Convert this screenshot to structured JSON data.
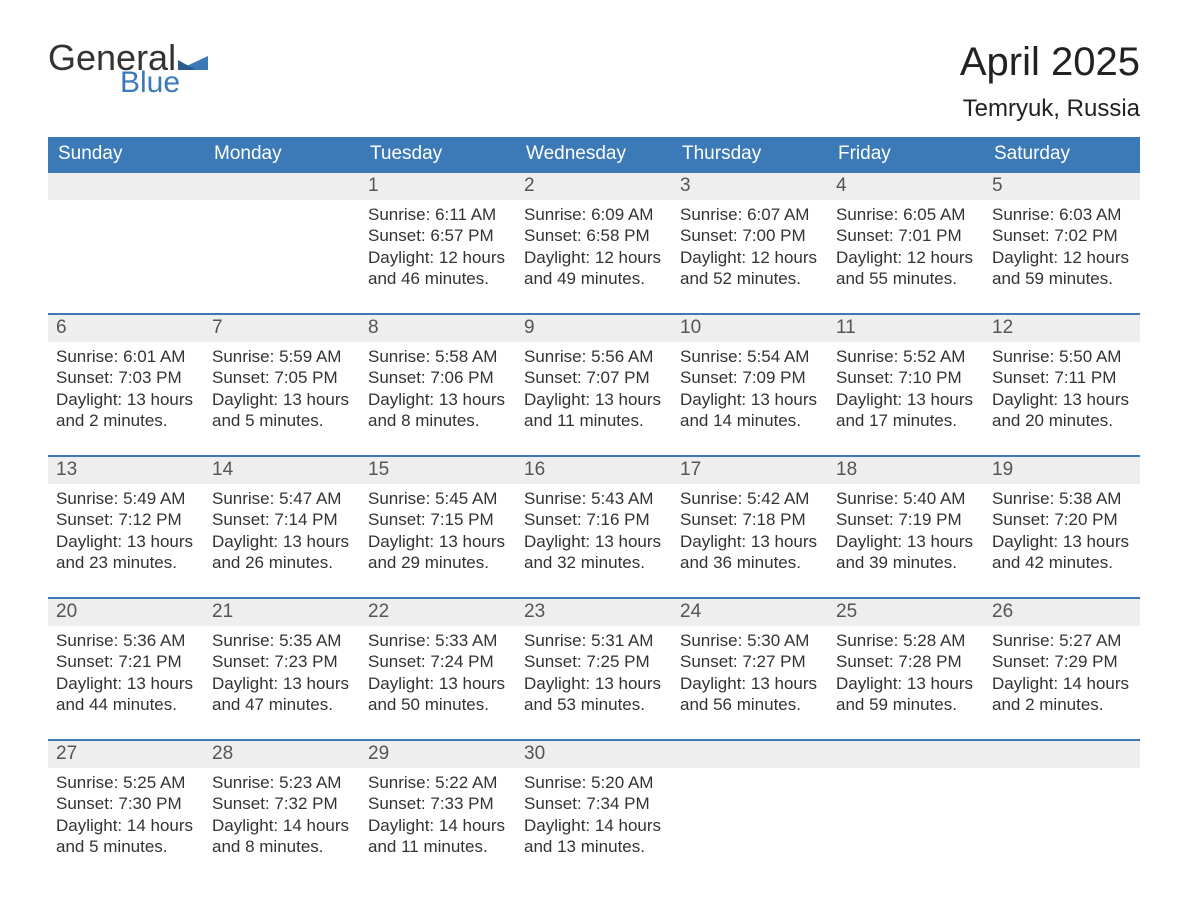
{
  "brand": {
    "word1": "General",
    "word2": "Blue",
    "accent_color": "#3b79b7"
  },
  "title": "April 2025",
  "location": "Temryuk, Russia",
  "day_headers": [
    "Sunday",
    "Monday",
    "Tuesday",
    "Wednesday",
    "Thursday",
    "Friday",
    "Saturday"
  ],
  "colors": {
    "header_bg": "#3b79b7",
    "header_text": "#ffffff",
    "daynum_bg": "#eeeeee",
    "text": "#333333",
    "border": "#3b79b7"
  },
  "fonts": {
    "month_title_size": 40,
    "location_size": 24,
    "header_size": 19,
    "daynum_size": 19,
    "body_size": 17
  },
  "weeks": [
    [
      {
        "n": "",
        "sunrise": "",
        "sunset": "",
        "daylight": ""
      },
      {
        "n": "",
        "sunrise": "",
        "sunset": "",
        "daylight": ""
      },
      {
        "n": "1",
        "sunrise": "Sunrise: 6:11 AM",
        "sunset": "Sunset: 6:57 PM",
        "daylight": "Daylight: 12 hours and 46 minutes."
      },
      {
        "n": "2",
        "sunrise": "Sunrise: 6:09 AM",
        "sunset": "Sunset: 6:58 PM",
        "daylight": "Daylight: 12 hours and 49 minutes."
      },
      {
        "n": "3",
        "sunrise": "Sunrise: 6:07 AM",
        "sunset": "Sunset: 7:00 PM",
        "daylight": "Daylight: 12 hours and 52 minutes."
      },
      {
        "n": "4",
        "sunrise": "Sunrise: 6:05 AM",
        "sunset": "Sunset: 7:01 PM",
        "daylight": "Daylight: 12 hours and 55 minutes."
      },
      {
        "n": "5",
        "sunrise": "Sunrise: 6:03 AM",
        "sunset": "Sunset: 7:02 PM",
        "daylight": "Daylight: 12 hours and 59 minutes."
      }
    ],
    [
      {
        "n": "6",
        "sunrise": "Sunrise: 6:01 AM",
        "sunset": "Sunset: 7:03 PM",
        "daylight": "Daylight: 13 hours and 2 minutes."
      },
      {
        "n": "7",
        "sunrise": "Sunrise: 5:59 AM",
        "sunset": "Sunset: 7:05 PM",
        "daylight": "Daylight: 13 hours and 5 minutes."
      },
      {
        "n": "8",
        "sunrise": "Sunrise: 5:58 AM",
        "sunset": "Sunset: 7:06 PM",
        "daylight": "Daylight: 13 hours and 8 minutes."
      },
      {
        "n": "9",
        "sunrise": "Sunrise: 5:56 AM",
        "sunset": "Sunset: 7:07 PM",
        "daylight": "Daylight: 13 hours and 11 minutes."
      },
      {
        "n": "10",
        "sunrise": "Sunrise: 5:54 AM",
        "sunset": "Sunset: 7:09 PM",
        "daylight": "Daylight: 13 hours and 14 minutes."
      },
      {
        "n": "11",
        "sunrise": "Sunrise: 5:52 AM",
        "sunset": "Sunset: 7:10 PM",
        "daylight": "Daylight: 13 hours and 17 minutes."
      },
      {
        "n": "12",
        "sunrise": "Sunrise: 5:50 AM",
        "sunset": "Sunset: 7:11 PM",
        "daylight": "Daylight: 13 hours and 20 minutes."
      }
    ],
    [
      {
        "n": "13",
        "sunrise": "Sunrise: 5:49 AM",
        "sunset": "Sunset: 7:12 PM",
        "daylight": "Daylight: 13 hours and 23 minutes."
      },
      {
        "n": "14",
        "sunrise": "Sunrise: 5:47 AM",
        "sunset": "Sunset: 7:14 PM",
        "daylight": "Daylight: 13 hours and 26 minutes."
      },
      {
        "n": "15",
        "sunrise": "Sunrise: 5:45 AM",
        "sunset": "Sunset: 7:15 PM",
        "daylight": "Daylight: 13 hours and 29 minutes."
      },
      {
        "n": "16",
        "sunrise": "Sunrise: 5:43 AM",
        "sunset": "Sunset: 7:16 PM",
        "daylight": "Daylight: 13 hours and 32 minutes."
      },
      {
        "n": "17",
        "sunrise": "Sunrise: 5:42 AM",
        "sunset": "Sunset: 7:18 PM",
        "daylight": "Daylight: 13 hours and 36 minutes."
      },
      {
        "n": "18",
        "sunrise": "Sunrise: 5:40 AM",
        "sunset": "Sunset: 7:19 PM",
        "daylight": "Daylight: 13 hours and 39 minutes."
      },
      {
        "n": "19",
        "sunrise": "Sunrise: 5:38 AM",
        "sunset": "Sunset: 7:20 PM",
        "daylight": "Daylight: 13 hours and 42 minutes."
      }
    ],
    [
      {
        "n": "20",
        "sunrise": "Sunrise: 5:36 AM",
        "sunset": "Sunset: 7:21 PM",
        "daylight": "Daylight: 13 hours and 44 minutes."
      },
      {
        "n": "21",
        "sunrise": "Sunrise: 5:35 AM",
        "sunset": "Sunset: 7:23 PM",
        "daylight": "Daylight: 13 hours and 47 minutes."
      },
      {
        "n": "22",
        "sunrise": "Sunrise: 5:33 AM",
        "sunset": "Sunset: 7:24 PM",
        "daylight": "Daylight: 13 hours and 50 minutes."
      },
      {
        "n": "23",
        "sunrise": "Sunrise: 5:31 AM",
        "sunset": "Sunset: 7:25 PM",
        "daylight": "Daylight: 13 hours and 53 minutes."
      },
      {
        "n": "24",
        "sunrise": "Sunrise: 5:30 AM",
        "sunset": "Sunset: 7:27 PM",
        "daylight": "Daylight: 13 hours and 56 minutes."
      },
      {
        "n": "25",
        "sunrise": "Sunrise: 5:28 AM",
        "sunset": "Sunset: 7:28 PM",
        "daylight": "Daylight: 13 hours and 59 minutes."
      },
      {
        "n": "26",
        "sunrise": "Sunrise: 5:27 AM",
        "sunset": "Sunset: 7:29 PM",
        "daylight": "Daylight: 14 hours and 2 minutes."
      }
    ],
    [
      {
        "n": "27",
        "sunrise": "Sunrise: 5:25 AM",
        "sunset": "Sunset: 7:30 PM",
        "daylight": "Daylight: 14 hours and 5 minutes."
      },
      {
        "n": "28",
        "sunrise": "Sunrise: 5:23 AM",
        "sunset": "Sunset: 7:32 PM",
        "daylight": "Daylight: 14 hours and 8 minutes."
      },
      {
        "n": "29",
        "sunrise": "Sunrise: 5:22 AM",
        "sunset": "Sunset: 7:33 PM",
        "daylight": "Daylight: 14 hours and 11 minutes."
      },
      {
        "n": "30",
        "sunrise": "Sunrise: 5:20 AM",
        "sunset": "Sunset: 7:34 PM",
        "daylight": "Daylight: 14 hours and 13 minutes."
      },
      {
        "n": "",
        "sunrise": "",
        "sunset": "",
        "daylight": ""
      },
      {
        "n": "",
        "sunrise": "",
        "sunset": "",
        "daylight": ""
      },
      {
        "n": "",
        "sunrise": "",
        "sunset": "",
        "daylight": ""
      }
    ]
  ]
}
